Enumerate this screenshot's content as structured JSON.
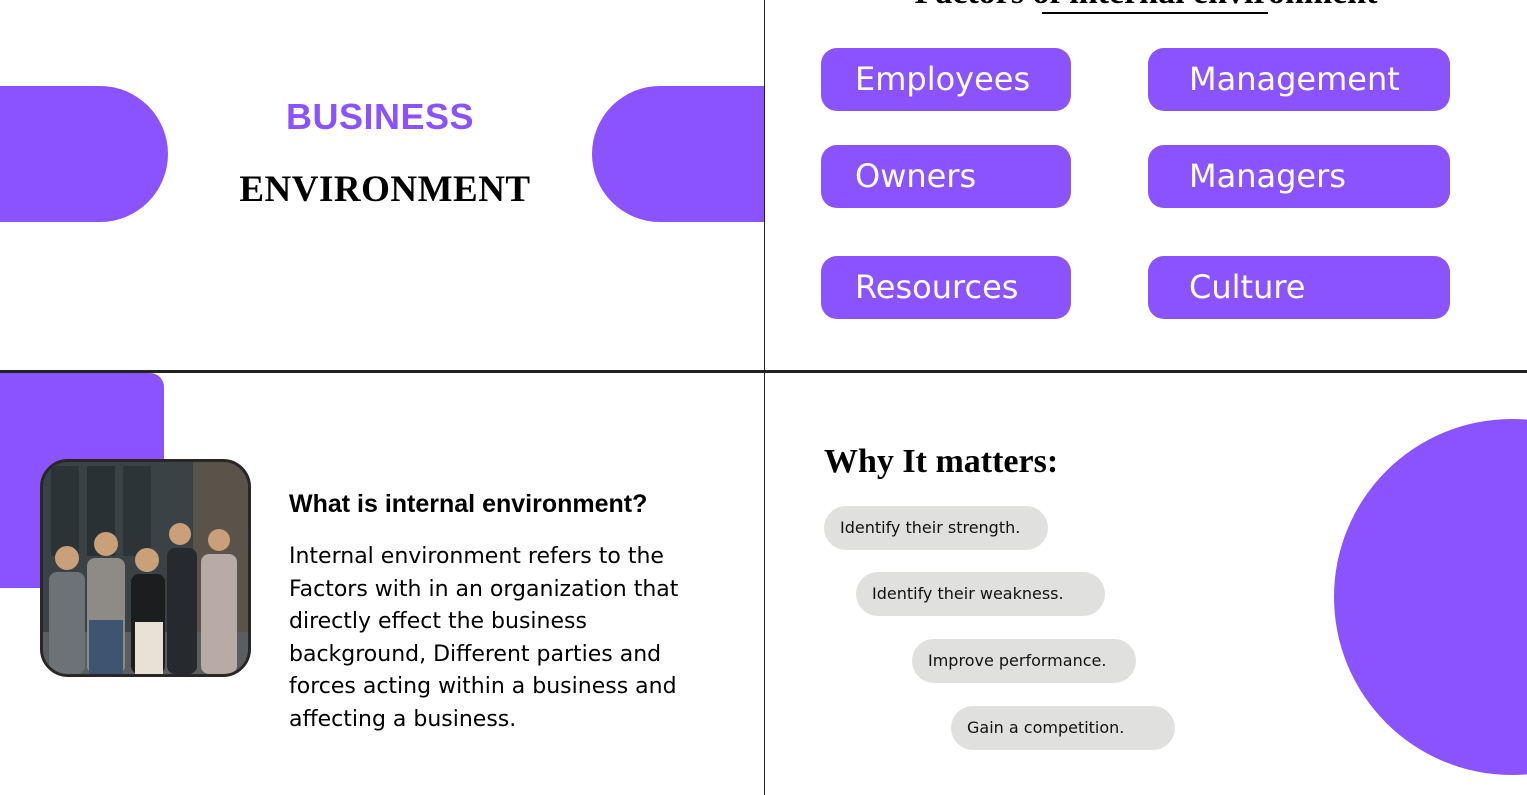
{
  "slide1": {
    "title_line1": "BUSINESS",
    "title_line2": "ENVIRONMENT"
  },
  "slide2": {
    "heading": "Factors of internal environment",
    "factors": [
      "Employees",
      "Management",
      "Owners",
      "Managers",
      "Resources",
      "Culture"
    ]
  },
  "slide3": {
    "heading": "What is internal environment?",
    "paragraph_lines": [
      "Internal environment refers to the",
      "Factors with in an organization that",
      "directly effect the business",
      "background, Different parties and",
      "forces acting within a business and",
      "affecting a business."
    ]
  },
  "slide4": {
    "heading": "Why It matters:",
    "points": [
      "Identify their strength.",
      "Identify their weakness.",
      "Improve performance.",
      "Gain a competition."
    ]
  },
  "colors": {
    "accent": "#8b53fe",
    "chip_bg": "#e0e1df",
    "divider": "#222222"
  }
}
